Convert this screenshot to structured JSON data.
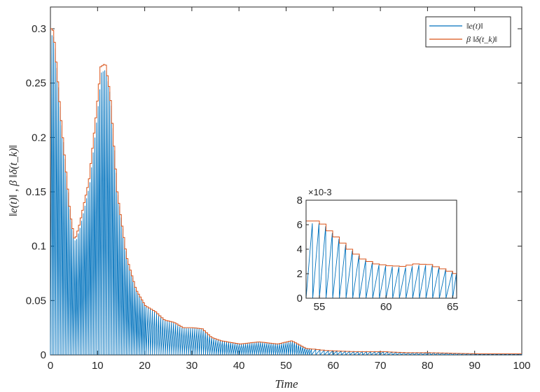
{
  "chart_data": [
    {
      "type": "line",
      "xlabel": "Time",
      "ylabel": "‖e(t)‖ , β ‖δ(t_k)‖",
      "xlim": [
        0,
        100
      ],
      "ylim": [
        0,
        0.32
      ],
      "xticks": [
        "0",
        "10",
        "20",
        "30",
        "40",
        "50",
        "60",
        "70",
        "80",
        "90",
        "100"
      ],
      "yticks": [
        "0",
        "0.05",
        "0.1",
        "0.15",
        "0.2",
        "0.25",
        "0.3"
      ],
      "grid": false,
      "legend_position": "top-right",
      "series": [
        {
          "name": "‖e(t)‖",
          "color": "#0072BD",
          "style": "sawtooth (resets to 0 at each event)"
        },
        {
          "name": "β ‖δ(t_k)‖",
          "color": "#D95319",
          "style": "threshold envelope",
          "x": [
            0,
            0.5,
            2,
            4,
            5,
            6,
            8,
            9.5,
            10.5,
            11.5,
            12.5,
            14,
            16,
            18,
            20,
            22,
            24,
            26,
            28,
            30,
            32,
            34,
            36,
            40,
            44,
            48,
            51,
            54,
            58,
            64,
            70,
            75,
            80,
            90,
            100
          ],
          "y": [
            0.3,
            0.298,
            0.22,
            0.13,
            0.105,
            0.12,
            0.16,
            0.22,
            0.265,
            0.268,
            0.24,
            0.15,
            0.09,
            0.06,
            0.045,
            0.04,
            0.032,
            0.03,
            0.025,
            0.025,
            0.024,
            0.016,
            0.013,
            0.01,
            0.012,
            0.01,
            0.013,
            0.006,
            0.004,
            0.003,
            0.003,
            0.002,
            0.002,
            0.001,
            0.001
          ]
        }
      ]
    },
    {
      "type": "line",
      "role": "inset zoom",
      "xlim": [
        54,
        65.3
      ],
      "ylim": [
        0,
        8
      ],
      "y_exponent_label": "×10-3",
      "xticks": [
        "55",
        "60",
        "65"
      ],
      "yticks": [
        "0",
        "2",
        "4",
        "6",
        "8"
      ],
      "series": [
        {
          "name": "‖e(t)‖",
          "color": "#0072BD"
        },
        {
          "name": "β ‖δ(t_k)‖",
          "color": "#D95319",
          "x": [
            54,
            54.8,
            55.2,
            56,
            57,
            58,
            59,
            60,
            61,
            62,
            63,
            64,
            65.3
          ],
          "y": [
            6.3,
            6.3,
            5.8,
            5.0,
            4.0,
            3.2,
            2.8,
            2.65,
            2.6,
            2.8,
            2.75,
            2.4,
            1.9
          ]
        }
      ]
    }
  ]
}
